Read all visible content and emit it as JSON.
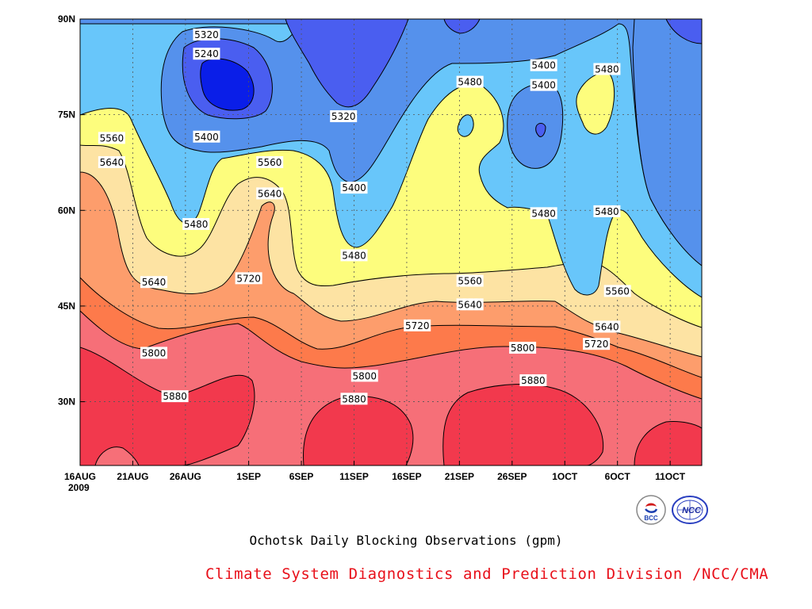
{
  "chart_data": {
    "type": "heatmap",
    "title": "Ochotsk Daily Blocking Observations (gpm)",
    "x_tick_labels": [
      "16AUG",
      "21AUG",
      "26AUG",
      "1SEP",
      "6SEP",
      "11SEP",
      "16SEP",
      "21SEP",
      "26SEP",
      "1OCT",
      "6OCT",
      "11OCT"
    ],
    "x_year_label": "2009",
    "y_tick_labels": [
      "90N",
      "75N",
      "60N",
      "45N",
      "30N"
    ],
    "y_ticks": [
      90,
      75,
      60,
      45,
      30
    ],
    "ylim": [
      20,
      90
    ],
    "x_days_range": [
      "2009-08-16",
      "2009-10-14"
    ],
    "grid": true,
    "contour_levels": [
      5240,
      5320,
      5400,
      5480,
      5560,
      5640,
      5720,
      5800,
      5880
    ],
    "fill_colors": [
      "#0a1ee8",
      "#4a5ef0",
      "#5591ec",
      "#68c6fa",
      "#fdfd7d",
      "#fde3a3",
      "#fd9d6c",
      "#fd7a4b",
      "#f66f78",
      "#f2394d"
    ],
    "contour_labels": [
      {
        "value": "5320",
        "date": "2009-08-28",
        "lat": 87.5
      },
      {
        "value": "5240",
        "date": "2009-08-28",
        "lat": 84.5
      },
      {
        "value": "5400",
        "date": "2009-08-28",
        "lat": 71.5
      },
      {
        "value": "5560",
        "date": "2009-08-19",
        "lat": 71.3
      },
      {
        "value": "5640",
        "date": "2009-08-19",
        "lat": 67.5
      },
      {
        "value": "5480",
        "date": "2009-08-27",
        "lat": 57.8
      },
      {
        "value": "5560",
        "date": "2009-09-03",
        "lat": 67.5
      },
      {
        "value": "5640",
        "date": "2009-09-03",
        "lat": 62.6
      },
      {
        "value": "5640",
        "date": "2009-08-23",
        "lat": 48.7
      },
      {
        "value": "5720",
        "date": "2009-09-01",
        "lat": 49.3
      },
      {
        "value": "5800",
        "date": "2009-08-23",
        "lat": 37.6
      },
      {
        "value": "5880",
        "date": "2009-08-25",
        "lat": 30.8
      },
      {
        "value": "5320",
        "date": "2009-09-10",
        "lat": 74.7
      },
      {
        "value": "5400",
        "date": "2009-09-11",
        "lat": 63.5
      },
      {
        "value": "5480",
        "date": "2009-09-11",
        "lat": 52.9
      },
      {
        "value": "5800",
        "date": "2009-09-12",
        "lat": 34.0
      },
      {
        "value": "5880",
        "date": "2009-09-11",
        "lat": 30.4
      },
      {
        "value": "5720",
        "date": "2009-09-17",
        "lat": 41.9
      },
      {
        "value": "5560",
        "date": "2009-09-22",
        "lat": 48.9
      },
      {
        "value": "5640",
        "date": "2009-09-22",
        "lat": 45.2
      },
      {
        "value": "5480",
        "date": "2009-09-22",
        "lat": 80.1
      },
      {
        "value": "5800",
        "date": "2009-09-27",
        "lat": 38.4
      },
      {
        "value": "5880",
        "date": "2009-09-28",
        "lat": 33.3
      },
      {
        "value": "5400",
        "date": "2009-09-29",
        "lat": 82.7
      },
      {
        "value": "5400",
        "date": "2009-09-29",
        "lat": 79.6
      },
      {
        "value": "5480",
        "date": "2009-09-29",
        "lat": 59.5
      },
      {
        "value": "5480",
        "date": "2009-10-05",
        "lat": 82.1
      },
      {
        "value": "5480",
        "date": "2009-10-05",
        "lat": 59.8
      },
      {
        "value": "5560",
        "date": "2009-10-06",
        "lat": 47.3
      },
      {
        "value": "5640",
        "date": "2009-10-05",
        "lat": 41.7
      },
      {
        "value": "5720",
        "date": "2009-10-04",
        "lat": 39.0
      }
    ]
  },
  "captions": {
    "title": "Ochotsk Daily Blocking Observations (gpm)",
    "credit": "Climate System Diagnostics and Prediction Division /NCC/CMA",
    "credit_color": "#e8101a"
  },
  "logos": {
    "bcc_text": "BCC",
    "ncc_text": "NCC"
  }
}
